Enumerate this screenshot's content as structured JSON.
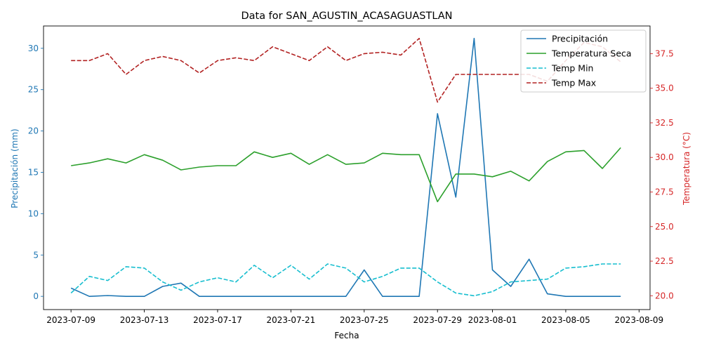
{
  "chart_data": {
    "type": "line",
    "title": "Data for SAN_AGUSTIN_ACASAGUASTLAN",
    "xlabel": "Fecha",
    "ylabel_left": "Precipitación (mm)",
    "ylabel_right": "Temperatura (°C)",
    "left_axis_color": "#1f77b4",
    "right_axis_color": "#d62728",
    "grid": false,
    "legend_position": "top-right",
    "x_ticks": [
      "2023-07-09",
      "2023-07-13",
      "2023-07-17",
      "2023-07-21",
      "2023-07-25",
      "2023-07-29",
      "2023-08-01",
      "2023-08-05",
      "2023-08-09"
    ],
    "y_left_ticks": [
      "0",
      "5",
      "10",
      "15",
      "20",
      "25",
      "30"
    ],
    "y_right_ticks": [
      "20.0",
      "22.5",
      "25.0",
      "27.5",
      "30.0",
      "32.5",
      "35.0",
      "37.5"
    ],
    "ylim_left": [
      -1.6,
      32.7
    ],
    "ylim_right": [
      19.0,
      39.5
    ],
    "x": [
      "2023-07-09",
      "2023-07-10",
      "2023-07-11",
      "2023-07-12",
      "2023-07-13",
      "2023-07-14",
      "2023-07-15",
      "2023-07-16",
      "2023-07-17",
      "2023-07-18",
      "2023-07-19",
      "2023-07-20",
      "2023-07-21",
      "2023-07-22",
      "2023-07-23",
      "2023-07-24",
      "2023-07-25",
      "2023-07-26",
      "2023-07-27",
      "2023-07-28",
      "2023-07-29",
      "2023-07-30",
      "2023-07-31",
      "2023-08-01",
      "2023-08-02",
      "2023-08-03",
      "2023-08-04",
      "2023-08-05",
      "2023-08-06",
      "2023-08-07",
      "2023-08-08"
    ],
    "series": [
      {
        "name": "Precipitación",
        "axis": "left",
        "color": "#1f77b4",
        "dash": "solid",
        "values": [
          1.0,
          0.0,
          0.1,
          0.0,
          0.0,
          1.2,
          1.6,
          0.0,
          0.0,
          0.0,
          0.0,
          0.0,
          0.0,
          0.0,
          0.0,
          0.0,
          3.2,
          0.0,
          0.0,
          0.0,
          22.1,
          12.0,
          31.2,
          3.2,
          1.2,
          4.5,
          0.3,
          0.0,
          0.0,
          0.0,
          0.0
        ]
      },
      {
        "name": "Temperatura Seca",
        "axis": "right",
        "color": "#2ca02c",
        "dash": "solid",
        "values": [
          29.4,
          29.6,
          29.9,
          29.6,
          30.2,
          29.8,
          29.1,
          29.3,
          29.4,
          29.4,
          30.4,
          30.0,
          30.3,
          29.5,
          30.2,
          29.5,
          29.6,
          30.3,
          30.2,
          30.2,
          26.8,
          28.8,
          28.8,
          28.6,
          29.0,
          28.3,
          29.7,
          30.4,
          30.5,
          29.2,
          30.7
        ]
      },
      {
        "name": "Temp Min",
        "axis": "right",
        "color": "#17becf",
        "dash": "dashed",
        "values": [
          20.2,
          21.4,
          21.1,
          22.1,
          22.0,
          21.0,
          20.4,
          21.0,
          21.3,
          21.0,
          22.2,
          21.3,
          22.2,
          21.2,
          22.3,
          22.0,
          21.0,
          21.4,
          22.0,
          22.0,
          21.0,
          20.2,
          20.0,
          20.3,
          21.0,
          21.1,
          21.2,
          22.0,
          22.1,
          22.3,
          22.3
        ]
      },
      {
        "name": "Temp Max",
        "axis": "right",
        "color": "#b22222",
        "dash": "dashed",
        "values": [
          37.0,
          37.0,
          37.5,
          36.0,
          37.0,
          37.3,
          37.0,
          36.1,
          37.0,
          37.2,
          37.0,
          38.0,
          37.5,
          37.0,
          38.0,
          37.0,
          37.5,
          37.6,
          37.4,
          38.6,
          34.0,
          36.0,
          36.0,
          36.0,
          36.0,
          36.0,
          35.5,
          37.0,
          38.3,
          38.0,
          36.9
        ]
      }
    ]
  }
}
